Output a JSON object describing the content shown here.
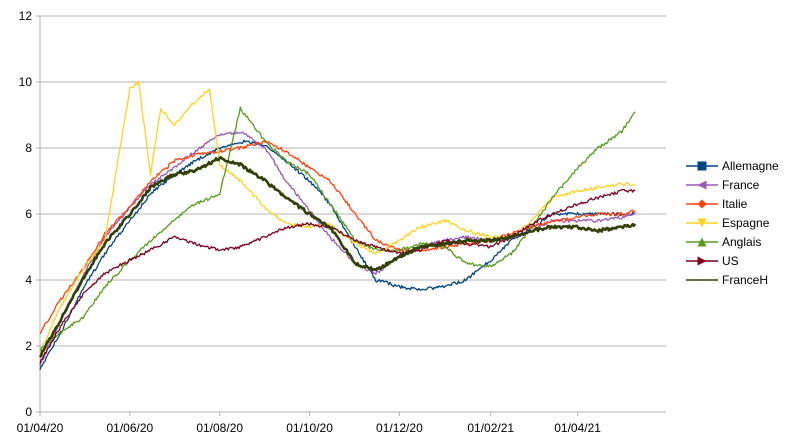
{
  "chart_data": {
    "type": "line",
    "title": "",
    "xlabel": "",
    "ylabel": "",
    "x_ticks": [
      "01/04/20",
      "01/06/20",
      "01/08/20",
      "01/10/20",
      "01/12/20",
      "01/02/21",
      "01/04/21"
    ],
    "x_range": [
      "2020-04-01",
      "2021-05-31"
    ],
    "y_ticks": [
      0,
      2,
      4,
      6,
      8,
      10,
      12
    ],
    "ylim": [
      0,
      12
    ],
    "grid": "horizontal",
    "legend_position": "right",
    "series": [
      {
        "name": "Allemagne",
        "color": "#004586",
        "marker": "square",
        "points": [
          [
            "2020-04-01",
            1.3
          ],
          [
            "2020-04-15",
            2.4
          ],
          [
            "2020-05-01",
            3.8
          ],
          [
            "2020-05-15",
            4.8
          ],
          [
            "2020-06-01",
            5.8
          ],
          [
            "2020-06-15",
            6.6
          ],
          [
            "2020-07-01",
            7.2
          ],
          [
            "2020-07-15",
            7.6
          ],
          [
            "2020-08-01",
            8.0
          ],
          [
            "2020-08-15",
            8.2
          ],
          [
            "2020-09-01",
            8.1
          ],
          [
            "2020-09-15",
            7.6
          ],
          [
            "2020-10-01",
            7.0
          ],
          [
            "2020-10-15",
            6.3
          ],
          [
            "2020-11-01",
            5.0
          ],
          [
            "2020-11-15",
            4.0
          ],
          [
            "2020-12-01",
            3.8
          ],
          [
            "2020-12-15",
            3.7
          ],
          [
            "2021-01-01",
            3.8
          ],
          [
            "2021-01-15",
            4.0
          ],
          [
            "2021-02-01",
            4.6
          ],
          [
            "2021-02-15",
            5.2
          ],
          [
            "2021-03-01",
            5.6
          ],
          [
            "2021-03-15",
            6.0
          ],
          [
            "2021-04-01",
            6.0
          ],
          [
            "2021-04-15",
            6.0
          ],
          [
            "2021-05-01",
            6.0
          ],
          [
            "2021-05-10",
            6.0
          ]
        ]
      },
      {
        "name": "France",
        "color": "#9b59b6",
        "marker": "triangle-left",
        "points": [
          [
            "2020-04-01",
            1.4
          ],
          [
            "2020-04-15",
            2.8
          ],
          [
            "2020-05-01",
            4.2
          ],
          [
            "2020-05-15",
            5.3
          ],
          [
            "2020-06-01",
            6.2
          ],
          [
            "2020-06-15",
            6.9
          ],
          [
            "2020-07-01",
            7.4
          ],
          [
            "2020-07-15",
            7.9
          ],
          [
            "2020-08-01",
            8.4
          ],
          [
            "2020-08-15",
            8.5
          ],
          [
            "2020-09-01",
            8.0
          ],
          [
            "2020-09-15",
            7.0
          ],
          [
            "2020-10-01",
            6.1
          ],
          [
            "2020-10-15",
            5.3
          ],
          [
            "2020-11-01",
            4.5
          ],
          [
            "2020-11-15",
            4.2
          ],
          [
            "2020-12-01",
            4.7
          ],
          [
            "2020-12-15",
            5.0
          ],
          [
            "2021-01-01",
            5.2
          ],
          [
            "2021-01-15",
            5.3
          ],
          [
            "2021-02-01",
            5.2
          ],
          [
            "2021-02-15",
            5.3
          ],
          [
            "2021-03-01",
            5.5
          ],
          [
            "2021-03-15",
            5.8
          ],
          [
            "2021-04-01",
            5.8
          ],
          [
            "2021-04-15",
            5.8
          ],
          [
            "2021-05-01",
            5.9
          ],
          [
            "2021-05-10",
            6.0
          ]
        ]
      },
      {
        "name": "Italie",
        "color": "#ff420e",
        "marker": "diamond",
        "points": [
          [
            "2020-04-01",
            2.4
          ],
          [
            "2020-04-15",
            3.4
          ],
          [
            "2020-05-01",
            4.4
          ],
          [
            "2020-05-15",
            5.4
          ],
          [
            "2020-06-01",
            6.2
          ],
          [
            "2020-06-15",
            7.0
          ],
          [
            "2020-07-01",
            7.6
          ],
          [
            "2020-07-15",
            7.8
          ],
          [
            "2020-08-01",
            7.9
          ],
          [
            "2020-08-15",
            8.0
          ],
          [
            "2020-09-01",
            8.2
          ],
          [
            "2020-09-15",
            7.9
          ],
          [
            "2020-10-01",
            7.4
          ],
          [
            "2020-10-15",
            7.0
          ],
          [
            "2020-11-01",
            6.0
          ],
          [
            "2020-11-15",
            5.2
          ],
          [
            "2020-12-01",
            4.9
          ],
          [
            "2020-12-15",
            4.9
          ],
          [
            "2021-01-01",
            5.0
          ],
          [
            "2021-01-15",
            5.1
          ],
          [
            "2021-02-01",
            5.2
          ],
          [
            "2021-02-15",
            5.4
          ],
          [
            "2021-03-01",
            5.6
          ],
          [
            "2021-03-15",
            5.8
          ],
          [
            "2021-04-01",
            5.9
          ],
          [
            "2021-04-15",
            6.0
          ],
          [
            "2021-05-01",
            6.0
          ],
          [
            "2021-05-10",
            6.1
          ]
        ]
      },
      {
        "name": "Espagne",
        "color": "#ffd320",
        "marker": "triangle-down",
        "points": [
          [
            "2020-04-01",
            1.8
          ],
          [
            "2020-04-15",
            3.2
          ],
          [
            "2020-05-01",
            4.4
          ],
          [
            "2020-05-15",
            5.2
          ],
          [
            "2020-06-01",
            9.8
          ],
          [
            "2020-06-07",
            10.0
          ],
          [
            "2020-06-15",
            7.2
          ],
          [
            "2020-06-22",
            9.2
          ],
          [
            "2020-07-01",
            8.7
          ],
          [
            "2020-07-15",
            9.4
          ],
          [
            "2020-07-25",
            9.8
          ],
          [
            "2020-08-01",
            7.5
          ],
          [
            "2020-08-15",
            7.0
          ],
          [
            "2020-09-01",
            6.2
          ],
          [
            "2020-09-15",
            5.7
          ],
          [
            "2020-10-01",
            5.6
          ],
          [
            "2020-10-15",
            5.7
          ],
          [
            "2020-11-01",
            5.1
          ],
          [
            "2020-11-15",
            4.8
          ],
          [
            "2020-12-01",
            5.2
          ],
          [
            "2020-12-15",
            5.6
          ],
          [
            "2021-01-01",
            5.8
          ],
          [
            "2021-01-15",
            5.5
          ],
          [
            "2021-02-01",
            5.3
          ],
          [
            "2021-02-15",
            5.3
          ],
          [
            "2021-03-01",
            5.8
          ],
          [
            "2021-03-15",
            6.5
          ],
          [
            "2021-04-01",
            6.7
          ],
          [
            "2021-04-15",
            6.8
          ],
          [
            "2021-05-01",
            6.9
          ],
          [
            "2021-05-10",
            6.9
          ]
        ]
      },
      {
        "name": "Anglais",
        "color": "#579d1c",
        "marker": "triangle-up",
        "points": [
          [
            "2020-04-01",
            1.9
          ],
          [
            "2020-04-15",
            2.4
          ],
          [
            "2020-05-01",
            2.9
          ],
          [
            "2020-05-15",
            3.8
          ],
          [
            "2020-06-01",
            4.6
          ],
          [
            "2020-06-15",
            5.2
          ],
          [
            "2020-07-01",
            5.8
          ],
          [
            "2020-07-15",
            6.3
          ],
          [
            "2020-08-01",
            6.6
          ],
          [
            "2020-08-15",
            9.2
          ],
          [
            "2020-09-01",
            8.2
          ],
          [
            "2020-09-15",
            7.6
          ],
          [
            "2020-10-01",
            7.2
          ],
          [
            "2020-10-15",
            6.3
          ],
          [
            "2020-11-01",
            5.2
          ],
          [
            "2020-11-15",
            4.9
          ],
          [
            "2020-12-01",
            4.9
          ],
          [
            "2020-12-15",
            5.1
          ],
          [
            "2021-01-01",
            5.0
          ],
          [
            "2021-01-15",
            4.5
          ],
          [
            "2021-02-01",
            4.4
          ],
          [
            "2021-02-15",
            4.8
          ],
          [
            "2021-03-01",
            5.6
          ],
          [
            "2021-03-15",
            6.5
          ],
          [
            "2021-04-01",
            7.4
          ],
          [
            "2021-04-15",
            8.0
          ],
          [
            "2021-05-01",
            8.5
          ],
          [
            "2021-05-10",
            9.1
          ]
        ]
      },
      {
        "name": "US",
        "color": "#7e0021",
        "marker": "triangle-right",
        "points": [
          [
            "2020-04-01",
            1.5
          ],
          [
            "2020-04-15",
            2.6
          ],
          [
            "2020-05-01",
            3.6
          ],
          [
            "2020-05-15",
            4.2
          ],
          [
            "2020-06-01",
            4.6
          ],
          [
            "2020-06-15",
            4.9
          ],
          [
            "2020-07-01",
            5.3
          ],
          [
            "2020-07-15",
            5.1
          ],
          [
            "2020-08-01",
            4.9
          ],
          [
            "2020-08-15",
            5.0
          ],
          [
            "2020-09-01",
            5.3
          ],
          [
            "2020-09-15",
            5.6
          ],
          [
            "2020-10-01",
            5.7
          ],
          [
            "2020-10-15",
            5.6
          ],
          [
            "2020-11-01",
            5.2
          ],
          [
            "2020-11-15",
            5.0
          ],
          [
            "2020-12-01",
            4.8
          ],
          [
            "2020-12-15",
            4.9
          ],
          [
            "2021-01-01",
            5.2
          ],
          [
            "2021-01-15",
            5.1
          ],
          [
            "2021-02-01",
            5.0
          ],
          [
            "2021-02-15",
            5.3
          ],
          [
            "2021-03-01",
            5.7
          ],
          [
            "2021-03-15",
            6.0
          ],
          [
            "2021-04-01",
            6.3
          ],
          [
            "2021-04-15",
            6.5
          ],
          [
            "2021-05-01",
            6.7
          ],
          [
            "2021-05-10",
            6.7
          ]
        ]
      },
      {
        "name": "FranceH",
        "color": "#314004",
        "marker": "bowtie",
        "points": [
          [
            "2020-04-01",
            1.7
          ],
          [
            "2020-04-15",
            2.8
          ],
          [
            "2020-05-01",
            4.1
          ],
          [
            "2020-05-15",
            5.1
          ],
          [
            "2020-06-01",
            6.0
          ],
          [
            "2020-06-15",
            6.8
          ],
          [
            "2020-07-01",
            7.2
          ],
          [
            "2020-07-15",
            7.3
          ],
          [
            "2020-08-01",
            7.7
          ],
          [
            "2020-08-15",
            7.5
          ],
          [
            "2020-09-01",
            7.0
          ],
          [
            "2020-09-15",
            6.5
          ],
          [
            "2020-10-01",
            6.0
          ],
          [
            "2020-10-15",
            5.6
          ],
          [
            "2020-11-01",
            4.5
          ],
          [
            "2020-11-15",
            4.3
          ],
          [
            "2020-12-01",
            4.7
          ],
          [
            "2020-12-15",
            5.0
          ],
          [
            "2021-01-01",
            5.1
          ],
          [
            "2021-01-15",
            5.2
          ],
          [
            "2021-02-01",
            5.2
          ],
          [
            "2021-02-15",
            5.3
          ],
          [
            "2021-03-01",
            5.5
          ],
          [
            "2021-03-15",
            5.6
          ],
          [
            "2021-04-01",
            5.6
          ],
          [
            "2021-04-15",
            5.5
          ],
          [
            "2021-05-01",
            5.6
          ],
          [
            "2021-05-10",
            5.7
          ]
        ]
      }
    ]
  }
}
